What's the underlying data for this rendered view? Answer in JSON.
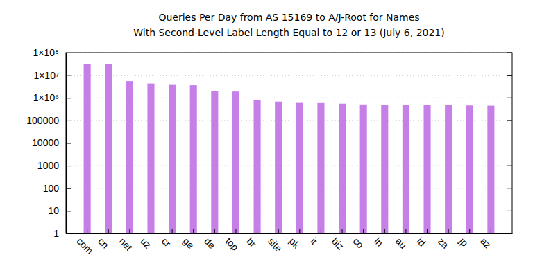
{
  "chart_data": {
    "type": "bar",
    "title": "Queries Per Day from AS 15169 to A/J-Root for Names",
    "subtitle": "With Second-Level Label Length Equal to 12 or 13 (July 6, 2021)",
    "categories": [
      "com",
      "cn",
      "net",
      "uz",
      "cr",
      "ge",
      "de",
      "top",
      "br",
      "site",
      "pk",
      "it",
      "biz",
      "co",
      "ln",
      "au",
      "id",
      "za",
      "jp",
      "az"
    ],
    "values": [
      32000000,
      31000000,
      5500000,
      4300000,
      4000000,
      3600000,
      2000000,
      1900000,
      820000,
      680000,
      640000,
      630000,
      550000,
      510000,
      500000,
      490000,
      480000,
      470000,
      460000,
      450000
    ],
    "color": "#c77fe8",
    "log": "y",
    "grid": true,
    "ylim": [
      1,
      100000000
    ],
    "yticks": [
      1,
      10,
      100,
      1000,
      10000,
      100000,
      {
        "value": 1000000,
        "label": "1×10⁶"
      },
      {
        "value": 10000000,
        "label": "1×10⁷"
      },
      {
        "value": 100000000,
        "label": "1×10⁸"
      }
    ]
  }
}
